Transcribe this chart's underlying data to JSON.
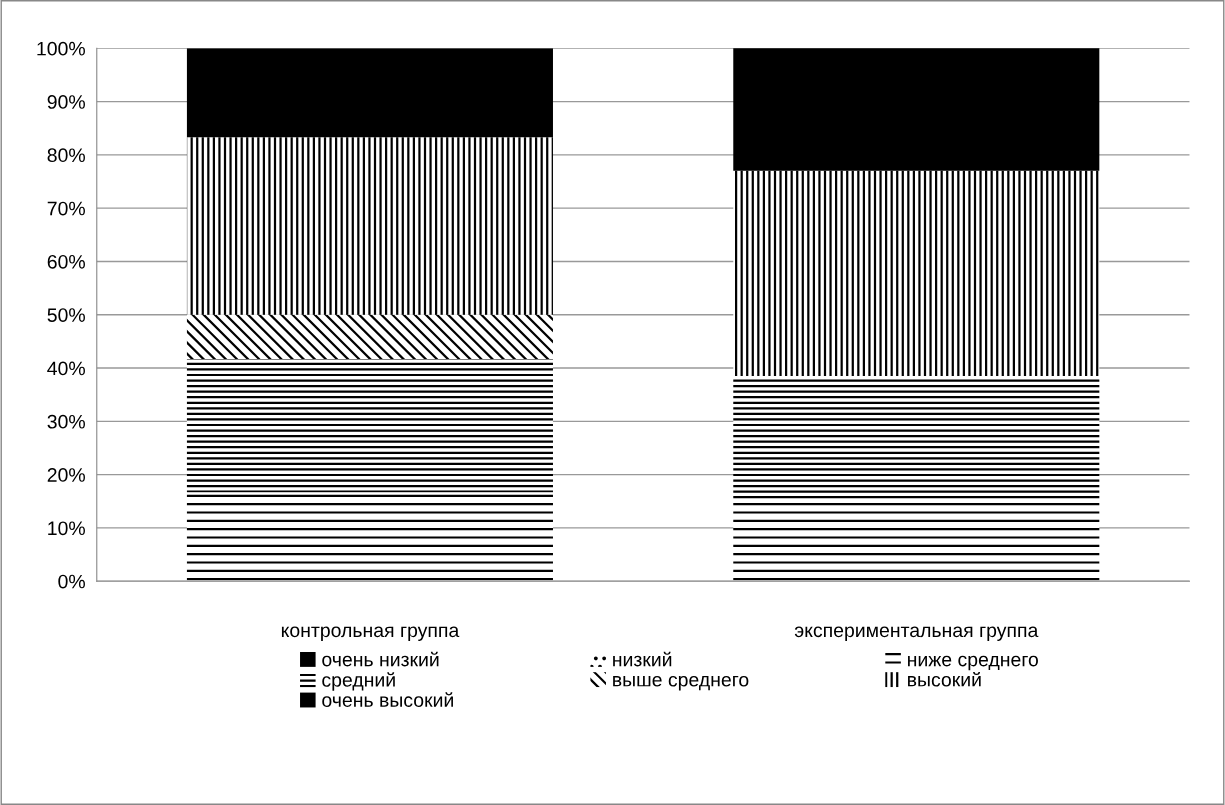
{
  "chart_data": {
    "type": "bar",
    "stacked": true,
    "categories": [
      "контрольная группа",
      "экспериментальная группа"
    ],
    "series": [
      {
        "name": "очень низкий",
        "color": "#000000",
        "values": [
          0,
          0
        ]
      },
      {
        "name": "низкий",
        "color": "#000000",
        "values": [
          0,
          0
        ]
      },
      {
        "name": "ниже среднего",
        "color": "#000000",
        "values": [
          16.7,
          15.4
        ]
      },
      {
        "name": "средний",
        "color": "#000000",
        "values": [
          25,
          23.1
        ]
      },
      {
        "name": "выше среднего",
        "color": "#000000",
        "values": [
          8.3,
          0
        ]
      },
      {
        "name": "высокий",
        "color": "#000000",
        "values": [
          33.3,
          38.5
        ]
      },
      {
        "name": "очень высокий",
        "color": "#000000",
        "values": [
          16.7,
          23.1
        ]
      }
    ],
    "ylim": [
      0,
      100
    ],
    "yticks": [
      {
        "value": 0,
        "label": "0%"
      },
      {
        "value": 10,
        "label": "10%"
      },
      {
        "value": 20,
        "label": "20%"
      },
      {
        "value": 30,
        "label": "30%"
      },
      {
        "value": 40,
        "label": "40%"
      },
      {
        "value": 50,
        "label": "50%"
      },
      {
        "value": 60,
        "label": "60%"
      },
      {
        "value": 70,
        "label": "70%"
      },
      {
        "value": 80,
        "label": "80%"
      },
      {
        "value": 90,
        "label": "90%"
      },
      {
        "value": 100,
        "label": "100%"
      }
    ],
    "grid": "y",
    "legend": "bottom"
  }
}
